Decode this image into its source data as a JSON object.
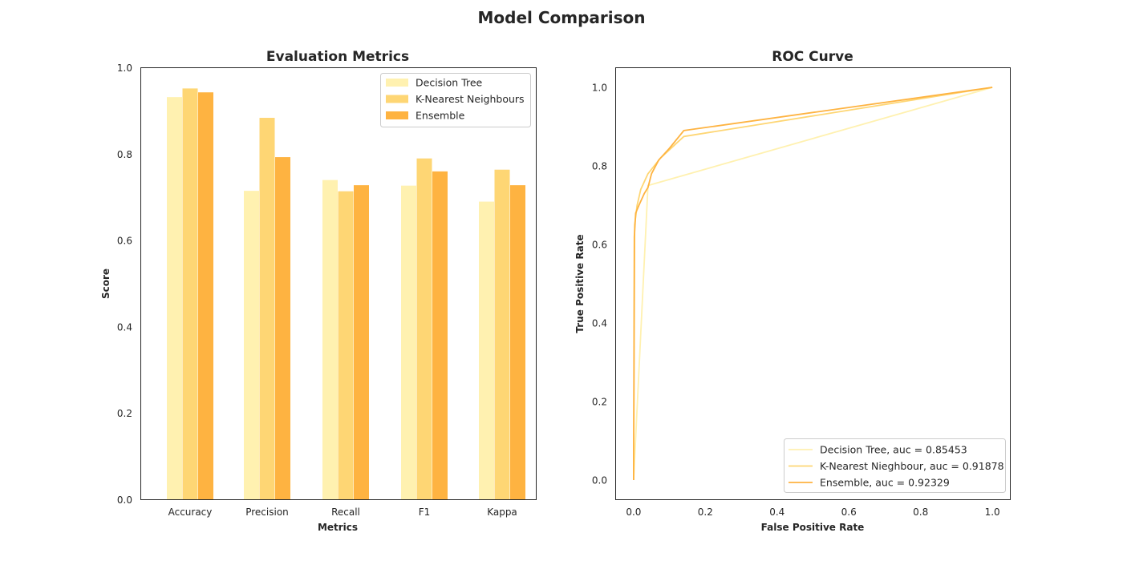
{
  "figure_title": "Model Comparison",
  "colors": {
    "decision_tree": "#fff1b0",
    "knn": "#fed674",
    "ensemble": "#feb341"
  },
  "chart_data": [
    {
      "type": "bar",
      "title": "Evaluation Metrics",
      "xlabel": "Metrics",
      "ylabel": "Score",
      "ylim": [
        0,
        1
      ],
      "yticks": [
        "0.0",
        "0.2",
        "0.4",
        "0.6",
        "0.8",
        "1.0"
      ],
      "categories": [
        "Accuracy",
        "Precision",
        "Recall",
        "F1",
        "Kappa"
      ],
      "legend_position": "top-right",
      "grid": false,
      "series": [
        {
          "name": "Decision Tree",
          "color": "#fff1b0",
          "values": [
            0.932,
            0.715,
            0.74,
            0.727,
            0.69
          ]
        },
        {
          "name": "K-Nearest Neighbours",
          "color": "#fed674",
          "values": [
            0.952,
            0.884,
            0.714,
            0.79,
            0.764
          ]
        },
        {
          "name": "Ensemble",
          "color": "#feb341",
          "values": [
            0.943,
            0.793,
            0.728,
            0.76,
            0.728
          ]
        }
      ]
    },
    {
      "type": "line",
      "title": "ROC Curve",
      "xlabel": "False Positive Rate",
      "ylabel": "True Positive Rate",
      "xlim": [
        -0.05,
        1.05
      ],
      "ylim": [
        -0.05,
        1.05
      ],
      "xticks": [
        "0.0",
        "0.2",
        "0.4",
        "0.6",
        "0.8",
        "1.0"
      ],
      "yticks": [
        "0.0",
        "0.2",
        "0.4",
        "0.6",
        "0.8",
        "1.0"
      ],
      "legend_position": "bottom-right",
      "grid": false,
      "series": [
        {
          "name": "Decision Tree, auc = 0.85453",
          "color": "#fff1b0",
          "x": [
            0.0,
            0.04,
            1.0
          ],
          "y": [
            0.0,
            0.75,
            1.0
          ]
        },
        {
          "name": "K-Nearest Nieghbour, auc = 0.91878",
          "color": "#fed674",
          "x": [
            0.0,
            0.003,
            0.01,
            0.02,
            0.04,
            0.075,
            0.14,
            1.0
          ],
          "y": [
            0.0,
            0.65,
            0.7,
            0.74,
            0.78,
            0.82,
            0.875,
            1.0
          ]
        },
        {
          "name": "Ensemble, auc = 0.92329",
          "color": "#feb341",
          "x": [
            0.0,
            0.002,
            0.006,
            0.015,
            0.03,
            0.04,
            0.05,
            0.07,
            0.1,
            0.14,
            1.0
          ],
          "y": [
            0.0,
            0.62,
            0.68,
            0.7,
            0.73,
            0.745,
            0.78,
            0.815,
            0.845,
            0.89,
            1.0
          ]
        }
      ]
    }
  ]
}
